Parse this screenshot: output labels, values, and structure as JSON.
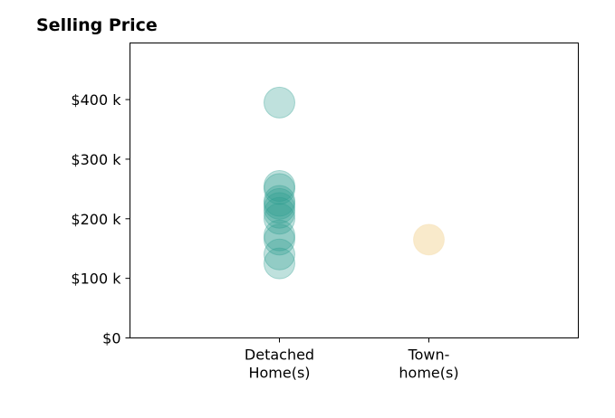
{
  "chart_data": {
    "type": "scatter",
    "title": "Selling Price",
    "xlabel": "",
    "ylabel": "",
    "categories": [
      {
        "lines": [
          "Detached",
          "Home(s)"
        ]
      },
      {
        "lines": [
          "Town-",
          "home(s)"
        ]
      }
    ],
    "y_ticks": [
      {
        "value": 0,
        "label": "$0"
      },
      {
        "value": 100000,
        "label": "$100 k"
      },
      {
        "value": 200000,
        "label": "$200 k"
      },
      {
        "value": 300000,
        "label": "$300 k"
      },
      {
        "value": 400000,
        "label": "$400 k"
      }
    ],
    "ylim": [
      0,
      495000
    ],
    "xlim": [
      -1,
      2
    ],
    "grid": false,
    "series": [
      {
        "category": "Detached Home(s)",
        "color": "#2a9d8f",
        "values": [
          395000,
          255000,
          250000,
          230000,
          225000,
          218000,
          210000,
          200000,
          172000,
          165000,
          140000,
          125000
        ]
      },
      {
        "category": "Town- home(s)",
        "color": "#f4d8a0",
        "values": [
          165000
        ]
      }
    ]
  }
}
